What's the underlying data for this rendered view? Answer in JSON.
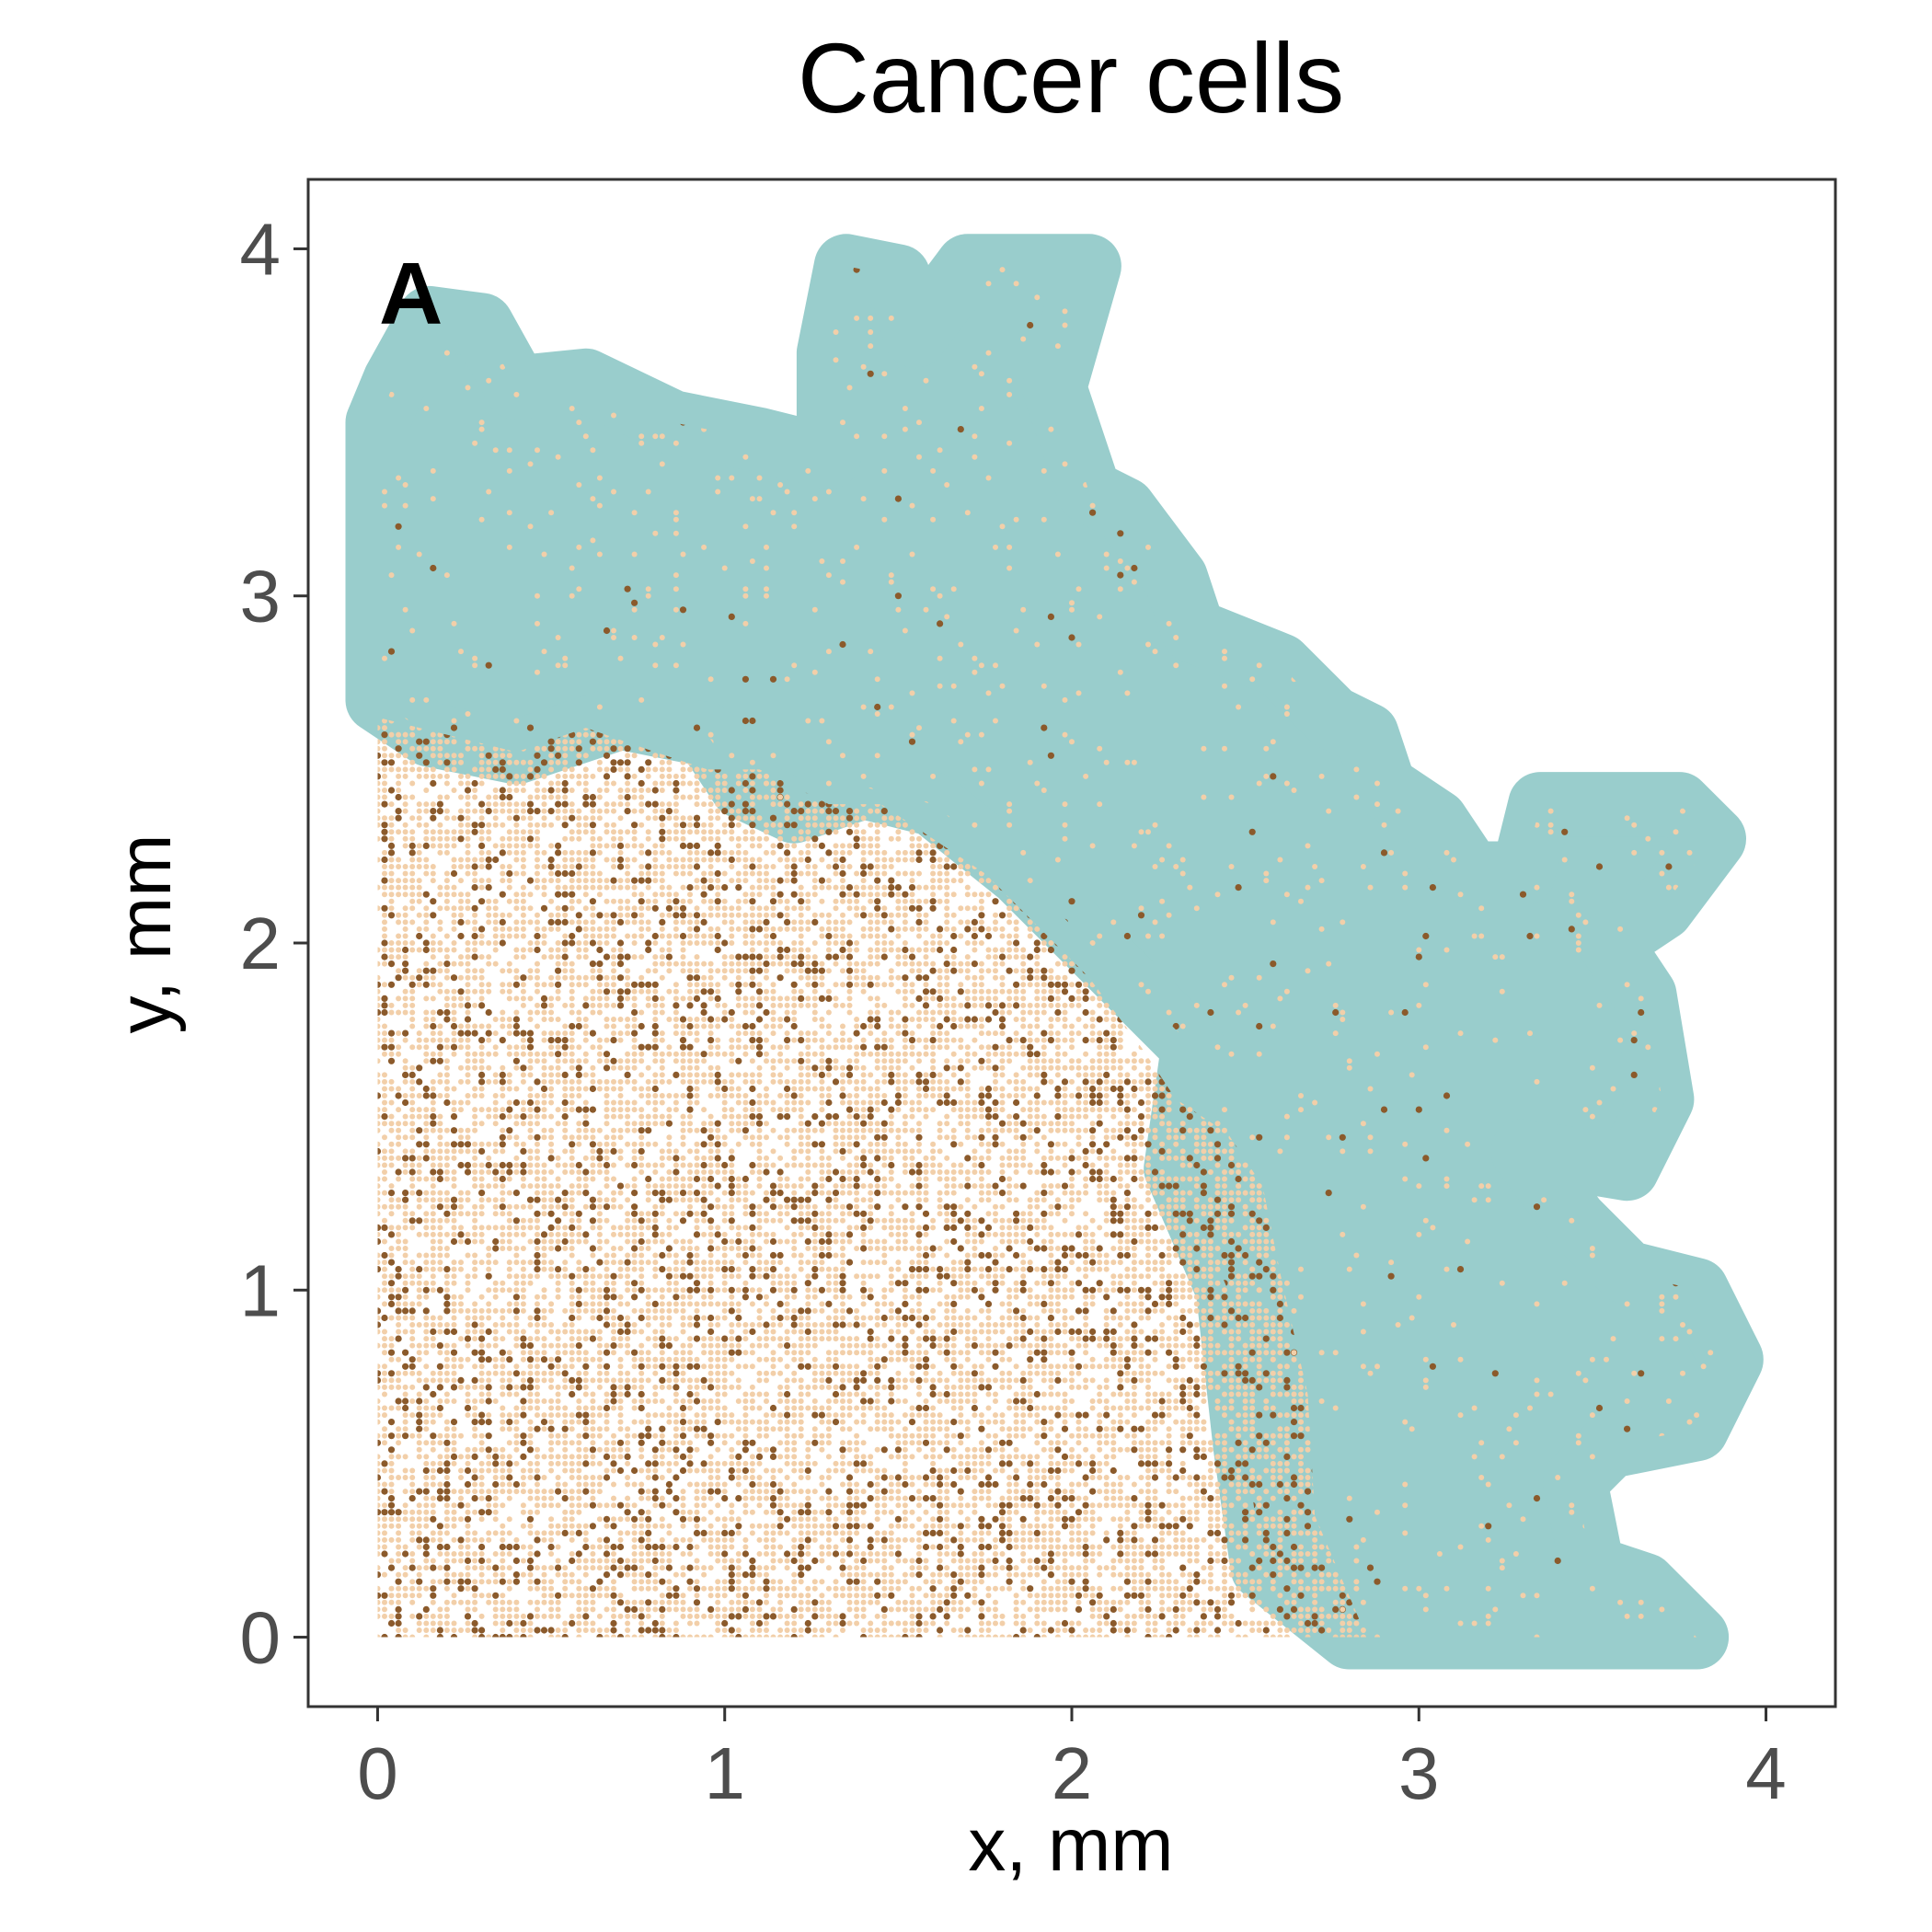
{
  "chart_data": {
    "type": "scatter",
    "title": "Cancer cells",
    "xlabel": "x, mm",
    "ylabel": "y, mm",
    "panel_label": "A",
    "xlim": [
      -0.2,
      4.2
    ],
    "ylim": [
      -0.2,
      4.2
    ],
    "x_ticks": [
      {
        "value": 0,
        "label": "0"
      },
      {
        "value": 1,
        "label": "1"
      },
      {
        "value": 2,
        "label": "2"
      },
      {
        "value": 3,
        "label": "3"
      },
      {
        "value": 4,
        "label": "4"
      }
    ],
    "y_ticks": [
      {
        "value": 0,
        "label": "0"
      },
      {
        "value": 1,
        "label": "1"
      },
      {
        "value": 2,
        "label": "2"
      },
      {
        "value": 3,
        "label": "3"
      },
      {
        "value": 4,
        "label": "4"
      }
    ],
    "grid": false,
    "legend": "none",
    "colors": {
      "region": "#99cdcc",
      "light_cells": "#f2cfa9",
      "dark_cells": "#8b5a2b"
    },
    "teal_region_outline": [
      [
        0.0,
        3.5
      ],
      [
        0.05,
        3.62
      ],
      [
        0.15,
        3.8
      ],
      [
        0.3,
        3.78
      ],
      [
        0.4,
        3.6
      ],
      [
        0.6,
        3.62
      ],
      [
        0.85,
        3.5
      ],
      [
        1.1,
        3.45
      ],
      [
        1.3,
        3.4
      ],
      [
        1.3,
        3.7
      ],
      [
        1.35,
        3.95
      ],
      [
        1.5,
        3.92
      ],
      [
        1.55,
        3.75
      ],
      [
        1.7,
        3.95
      ],
      [
        2.05,
        3.95
      ],
      [
        1.95,
        3.6
      ],
      [
        2.05,
        3.3
      ],
      [
        2.15,
        3.25
      ],
      [
        2.3,
        3.05
      ],
      [
        2.35,
        2.9
      ],
      [
        2.6,
        2.8
      ],
      [
        2.75,
        2.65
      ],
      [
        2.85,
        2.6
      ],
      [
        2.9,
        2.45
      ],
      [
        3.05,
        2.35
      ],
      [
        3.15,
        2.2
      ],
      [
        3.3,
        2.2
      ],
      [
        3.35,
        2.4
      ],
      [
        3.75,
        2.4
      ],
      [
        3.85,
        2.3
      ],
      [
        3.7,
        2.1
      ],
      [
        3.55,
        2.0
      ],
      [
        3.65,
        1.85
      ],
      [
        3.7,
        1.55
      ],
      [
        3.6,
        1.35
      ],
      [
        3.3,
        1.4
      ],
      [
        3.45,
        1.2
      ],
      [
        3.6,
        1.05
      ],
      [
        3.8,
        1.0
      ],
      [
        3.9,
        0.8
      ],
      [
        3.8,
        0.6
      ],
      [
        3.55,
        0.55
      ],
      [
        3.45,
        0.45
      ],
      [
        3.5,
        0.2
      ],
      [
        3.65,
        0.15
      ],
      [
        3.8,
        0.0
      ],
      [
        2.8,
        0.0
      ],
      [
        2.55,
        0.2
      ],
      [
        2.5,
        0.55
      ],
      [
        2.45,
        1.0
      ],
      [
        2.3,
        1.35
      ],
      [
        2.35,
        1.7
      ],
      [
        2.2,
        1.85
      ],
      [
        2.0,
        2.05
      ],
      [
        1.85,
        2.2
      ],
      [
        1.6,
        2.4
      ],
      [
        1.4,
        2.45
      ],
      [
        1.2,
        2.38
      ],
      [
        1.05,
        2.45
      ],
      [
        0.95,
        2.6
      ],
      [
        0.7,
        2.65
      ],
      [
        0.4,
        2.55
      ],
      [
        0.15,
        2.6
      ],
      [
        0.0,
        2.7
      ]
    ],
    "cell_region_outline": [
      [
        0.0,
        0.0
      ],
      [
        2.85,
        0.0
      ],
      [
        2.7,
        0.35
      ],
      [
        2.68,
        0.7
      ],
      [
        2.6,
        1.05
      ],
      [
        2.55,
        1.3
      ],
      [
        2.45,
        1.45
      ],
      [
        2.3,
        1.55
      ],
      [
        2.2,
        1.7
      ],
      [
        2.05,
        1.9
      ],
      [
        1.9,
        2.05
      ],
      [
        1.75,
        2.2
      ],
      [
        1.6,
        2.3
      ],
      [
        1.45,
        2.4
      ],
      [
        1.3,
        2.4
      ],
      [
        1.1,
        2.5
      ],
      [
        0.95,
        2.5
      ],
      [
        0.8,
        2.55
      ],
      [
        0.6,
        2.62
      ],
      [
        0.4,
        2.55
      ],
      [
        0.2,
        2.6
      ],
      [
        0.0,
        2.65
      ]
    ],
    "series": [
      {
        "density_fraction_in_cell_region": 0.55,
        "density_fraction_in_teal_region": 0.04
      },
      {
        "density_fraction_in_cell_region": 0.14,
        "density_fraction_in_teal_region": 0.006
      }
    ]
  }
}
